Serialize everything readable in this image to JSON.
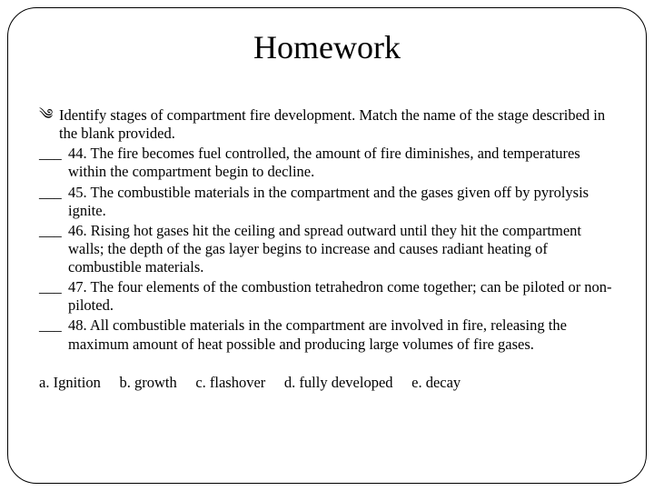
{
  "title": "Homework",
  "bullet_glyph": "༄",
  "intro": "Identify stages of compartment fire development. Match the name of the stage described in the blank provided.",
  "blank_placeholder": "___",
  "questions": [
    {
      "num": "44.",
      "text": "The fire becomes fuel controlled, the amount of fire diminishes, and temperatures within the compartment begin to decline."
    },
    {
      "num": "45.",
      "text": "The combustible materials in the compartment and the gases given off by pyrolysis ignite."
    },
    {
      "num": "46.",
      "text": "Rising hot gases hit the ceiling and spread outward until they hit the compartment walls; the depth of the gas layer begins to increase and causes radiant heating of combustible materials."
    },
    {
      "num": "47.",
      "text": "The four elements of the combustion tetrahedron come together; can be piloted or non-piloted."
    },
    {
      "num": "48.",
      "text": "All combustible materials in the compartment are involved in fire, releasing the maximum amount of heat possible and producing large volumes of fire gases."
    }
  ],
  "options": [
    "a. Ignition",
    "b. growth",
    "c. flashover",
    "d. fully developed",
    "e. decay"
  ]
}
